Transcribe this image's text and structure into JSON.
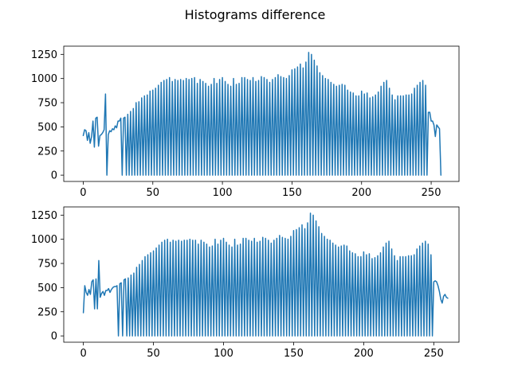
{
  "figure_title": "Histograms difference",
  "chart_data": [
    {
      "type": "line",
      "name": "top",
      "color": "#1f77b4",
      "grid": false,
      "xlim": [
        -14,
        270
      ],
      "ylim": [
        -65,
        1335
      ],
      "x_ticks": [
        0,
        50,
        100,
        150,
        200,
        250
      ],
      "y_ticks": [
        0,
        250,
        500,
        750,
        1000,
        1250
      ],
      "x_start": 0,
      "y": [
        410,
        470,
        460,
        360,
        440,
        330,
        400,
        560,
        290,
        590,
        600,
        300,
        410,
        420,
        440,
        470,
        840,
        0,
        420,
        460,
        450,
        480,
        470,
        510,
        490,
        560,
        560,
        590,
        0,
        590,
        600,
        0,
        630,
        0,
        660,
        0,
        690,
        0,
        750,
        0,
        760,
        0,
        800,
        0,
        820,
        0,
        830,
        0,
        870,
        0,
        880,
        0,
        900,
        0,
        930,
        0,
        960,
        0,
        980,
        0,
        990,
        0,
        1010,
        0,
        970,
        0,
        990,
        0,
        980,
        0,
        990,
        0,
        980,
        0,
        1000,
        0,
        990,
        0,
        1000,
        0,
        1010,
        0,
        950,
        0,
        990,
        0,
        970,
        0,
        950,
        0,
        920,
        0,
        940,
        0,
        1000,
        0,
        950,
        0,
        990,
        0,
        1010,
        0,
        970,
        0,
        940,
        0,
        920,
        0,
        1000,
        0,
        940,
        0,
        950,
        0,
        1010,
        0,
        1010,
        0,
        990,
        0,
        980,
        0,
        1010,
        0,
        970,
        0,
        980,
        0,
        1020,
        0,
        1010,
        0,
        990,
        0,
        960,
        0,
        990,
        0,
        1010,
        0,
        1040,
        0,
        1020,
        0,
        1010,
        0,
        1000,
        0,
        1030,
        0,
        1090,
        0,
        1100,
        0,
        1120,
        0,
        1150,
        0,
        1110,
        0,
        1170,
        0,
        1270,
        0,
        1250,
        0,
        1190,
        0,
        1130,
        0,
        1060,
        0,
        1030,
        0,
        1000,
        0,
        990,
        0,
        960,
        0,
        940,
        0,
        920,
        0,
        930,
        0,
        940,
        0,
        930,
        0,
        880,
        0,
        860,
        0,
        850,
        0,
        820,
        0,
        820,
        0,
        870,
        0,
        840,
        0,
        850,
        0,
        800,
        0,
        810,
        0,
        830,
        0,
        860,
        0,
        920,
        0,
        960,
        0,
        980,
        0,
        900,
        0,
        830,
        0,
        780,
        0,
        820,
        0,
        820,
        0,
        820,
        0,
        830,
        0,
        830,
        0,
        840,
        0,
        900,
        0,
        930,
        0,
        960,
        0,
        980,
        0,
        930,
        0,
        650,
        650,
        560,
        560,
        520,
        400,
        520,
        500,
        480,
        0
      ]
    },
    {
      "type": "line",
      "name": "bottom",
      "color": "#1f77b4",
      "grid": false,
      "xlim": [
        -14,
        268
      ],
      "ylim": [
        -65,
        1335
      ],
      "x_ticks": [
        0,
        50,
        100,
        150,
        200,
        250
      ],
      "y_ticks": [
        0,
        250,
        500,
        750,
        1000,
        1250
      ],
      "x_start": 0,
      "y": [
        240,
        520,
        450,
        420,
        480,
        430,
        560,
        580,
        280,
        590,
        280,
        780,
        400,
        440,
        460,
        420,
        470,
        470,
        490,
        450,
        480,
        500,
        510,
        510,
        520,
        0,
        540,
        550,
        0,
        580,
        590,
        0,
        600,
        0,
        630,
        0,
        650,
        0,
        710,
        0,
        740,
        0,
        780,
        0,
        820,
        0,
        840,
        0,
        860,
        0,
        880,
        0,
        910,
        0,
        940,
        0,
        970,
        0,
        990,
        0,
        1000,
        0,
        970,
        0,
        990,
        0,
        980,
        0,
        990,
        0,
        980,
        0,
        990,
        0,
        990,
        0,
        1000,
        0,
        990,
        0,
        990,
        0,
        950,
        0,
        990,
        0,
        970,
        0,
        950,
        0,
        920,
        0,
        930,
        0,
        1000,
        0,
        950,
        0,
        990,
        0,
        1010,
        0,
        970,
        0,
        940,
        0,
        920,
        0,
        1000,
        0,
        940,
        0,
        950,
        0,
        1010,
        0,
        1010,
        0,
        990,
        0,
        980,
        0,
        1010,
        0,
        970,
        0,
        980,
        0,
        1020,
        0,
        1010,
        0,
        990,
        0,
        960,
        0,
        990,
        0,
        1010,
        0,
        1040,
        0,
        1020,
        0,
        1010,
        0,
        1000,
        0,
        1030,
        0,
        1090,
        0,
        1100,
        0,
        1120,
        0,
        1150,
        0,
        1110,
        0,
        1170,
        0,
        1270,
        0,
        1250,
        0,
        1190,
        0,
        1130,
        0,
        1060,
        0,
        1030,
        0,
        1000,
        0,
        990,
        0,
        960,
        0,
        940,
        0,
        920,
        0,
        930,
        0,
        940,
        0,
        930,
        0,
        880,
        0,
        860,
        0,
        850,
        0,
        820,
        0,
        820,
        0,
        870,
        0,
        840,
        0,
        850,
        0,
        800,
        0,
        810,
        0,
        830,
        0,
        860,
        0,
        920,
        0,
        960,
        0,
        980,
        0,
        900,
        0,
        830,
        0,
        780,
        0,
        820,
        0,
        820,
        0,
        820,
        0,
        830,
        0,
        830,
        0,
        840,
        0,
        900,
        0,
        930,
        0,
        960,
        0,
        980,
        0,
        950,
        0,
        840,
        0,
        560,
        570,
        560,
        520,
        460,
        380,
        340,
        410,
        430,
        400,
        390
      ]
    }
  ]
}
